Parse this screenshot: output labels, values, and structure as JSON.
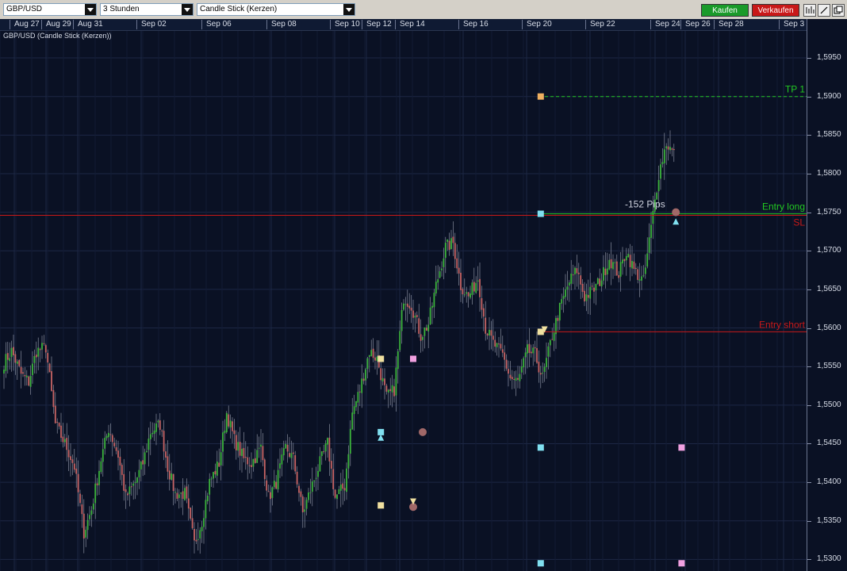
{
  "toolbar": {
    "symbol": "GBP/USD",
    "timeframe": "3 Stunden",
    "charttype": "Candle Stick (Kerzen)",
    "buy_label": "Kaufen",
    "sell_label": "Verkaufen",
    "buy_color": "#1a9a2a",
    "sell_color": "#c81818",
    "icons": [
      "bar-chart-icon",
      "line-tool-icon",
      "window-icon"
    ]
  },
  "chart_data": {
    "type": "candlestick",
    "title": "GBP/USD (Candle Stick (Kerzen))",
    "date_labels": [
      "Aug 27",
      "Aug 29",
      "Aug 31",
      "Sep 02",
      "Sep 06",
      "Sep 08",
      "Sep 10",
      "Sep 12",
      "Sep 14",
      "Sep 16",
      "Sep 20",
      "Sep 22",
      "Sep 24",
      "Sep 26",
      "Sep 28",
      "Sep 3"
    ],
    "yticks": [
      "1,5950",
      "1,5900",
      "1,5850",
      "1,5800",
      "1,5750",
      "1,5700",
      "1,5650",
      "1,5600",
      "1,5550",
      "1,5500",
      "1,5450",
      "1,5400",
      "1,5350",
      "1,5300"
    ],
    "ylim": [
      1.5285,
      1.5985
    ],
    "lines": [
      {
        "name": "TP 1",
        "price": 1.59,
        "color": "#22c822",
        "style": "dashed"
      },
      {
        "name": "Entry long",
        "price": 1.5748,
        "color": "#22c822",
        "style": "solid"
      },
      {
        "name": "SL",
        "price": 1.5746,
        "color": "#c81818",
        "style": "solid"
      },
      {
        "name": "Entry short",
        "price": 1.5595,
        "color": "#c81818",
        "style": "solid"
      }
    ],
    "annotation": "-152 Pips",
    "up_color": "#3cb43c",
    "down_color": "#c86464",
    "waypoints": [
      [
        0,
        1.5555
      ],
      [
        4,
        1.557
      ],
      [
        9,
        1.554
      ],
      [
        13,
        1.553
      ],
      [
        17,
        1.557
      ],
      [
        22,
        1.5575
      ],
      [
        27,
        1.5475
      ],
      [
        33,
        1.5445
      ],
      [
        37,
        1.542
      ],
      [
        42,
        1.5335
      ],
      [
        46,
        1.5365
      ],
      [
        51,
        1.543
      ],
      [
        55,
        1.547
      ],
      [
        60,
        1.5435
      ],
      [
        64,
        1.538
      ],
      [
        69,
        1.54
      ],
      [
        73,
        1.5425
      ],
      [
        77,
        1.5465
      ],
      [
        82,
        1.5475
      ],
      [
        86,
        1.542
      ],
      [
        90,
        1.5385
      ],
      [
        95,
        1.5385
      ],
      [
        100,
        1.532
      ],
      [
        104,
        1.535
      ],
      [
        108,
        1.54
      ],
      [
        113,
        1.5425
      ],
      [
        117,
        1.549
      ],
      [
        121,
        1.5455
      ],
      [
        126,
        1.543
      ],
      [
        130,
        1.5425
      ],
      [
        135,
        1.5445
      ],
      [
        139,
        1.538
      ],
      [
        143,
        1.54
      ],
      [
        148,
        1.5445
      ],
      [
        152,
        1.543
      ],
      [
        157,
        1.536
      ],
      [
        161,
        1.539
      ],
      [
        166,
        1.5425
      ],
      [
        170,
        1.545
      ],
      [
        174,
        1.538
      ],
      [
        179,
        1.5395
      ],
      [
        183,
        1.549
      ],
      [
        187,
        1.552
      ],
      [
        192,
        1.557
      ],
      [
        196,
        1.556
      ],
      [
        201,
        1.551
      ],
      [
        205,
        1.552
      ],
      [
        210,
        1.564
      ],
      [
        214,
        1.563
      ],
      [
        219,
        1.559
      ],
      [
        223,
        1.5605
      ],
      [
        227,
        1.5655
      ],
      [
        232,
        1.5705
      ],
      [
        236,
        1.571
      ],
      [
        240,
        1.5655
      ],
      [
        244,
        1.564
      ],
      [
        249,
        1.5665
      ],
      [
        253,
        1.56
      ],
      [
        257,
        1.558
      ],
      [
        262,
        1.5565
      ],
      [
        266,
        1.5535
      ],
      [
        270,
        1.553
      ],
      [
        275,
        1.557
      ],
      [
        279,
        1.5565
      ],
      [
        283,
        1.5535
      ],
      [
        288,
        1.559
      ],
      [
        292,
        1.5625
      ],
      [
        297,
        1.566
      ],
      [
        301,
        1.5675
      ],
      [
        305,
        1.564
      ],
      [
        310,
        1.565
      ],
      [
        314,
        1.5665
      ],
      [
        318,
        1.569
      ],
      [
        323,
        1.567
      ],
      [
        327,
        1.57
      ],
      [
        331,
        1.5675
      ],
      [
        336,
        1.566
      ],
      [
        340,
        1.573
      ],
      [
        344,
        1.58
      ],
      [
        348,
        1.584
      ],
      [
        352,
        1.5825
      ]
    ],
    "markers": [
      {
        "shape": "square",
        "price": 1.59,
        "bar": 282,
        "color": "#f0b060"
      },
      {
        "shape": "square",
        "price": 1.5748,
        "bar": 282,
        "color": "#80e0f0"
      },
      {
        "shape": "square",
        "price": 1.5595,
        "bar": 282,
        "color": "#f0e0a0"
      },
      {
        "shape": "square",
        "price": 1.556,
        "bar": 198,
        "color": "#f0e0a0"
      },
      {
        "shape": "square",
        "price": 1.556,
        "bar": 215,
        "color": "#f0a0e0"
      },
      {
        "shape": "square",
        "price": 1.5465,
        "bar": 198,
        "color": "#80e0f0"
      },
      {
        "shape": "square",
        "price": 1.537,
        "bar": 198,
        "color": "#f0e0a0"
      },
      {
        "shape": "square",
        "price": 1.5445,
        "bar": 282,
        "color": "#80e0f0"
      },
      {
        "shape": "square",
        "price": 1.5445,
        "bar": 356,
        "color": "#f0a0e0"
      },
      {
        "shape": "square",
        "price": 1.5295,
        "bar": 282,
        "color": "#80e0f0"
      },
      {
        "shape": "square",
        "price": 1.5295,
        "bar": 356,
        "color": "#f0a0e0"
      },
      {
        "shape": "circle",
        "price": 1.5465,
        "bar": 220,
        "color": "#a06868"
      },
      {
        "shape": "circle",
        "price": 1.5368,
        "bar": 215,
        "color": "#a06868"
      },
      {
        "shape": "circle",
        "price": 1.575,
        "bar": 353,
        "color": "#a06868"
      },
      {
        "shape": "tri-up",
        "price": 1.5458,
        "bar": 198,
        "color": "#80e0f0"
      },
      {
        "shape": "tri-up",
        "price": 1.5738,
        "bar": 353,
        "color": "#80e0f0"
      },
      {
        "shape": "tri-down",
        "price": 1.5375,
        "bar": 215,
        "color": "#f0e0a0"
      },
      {
        "shape": "tri-down",
        "price": 1.5598,
        "bar": 284,
        "color": "#f0e0a0"
      }
    ]
  }
}
